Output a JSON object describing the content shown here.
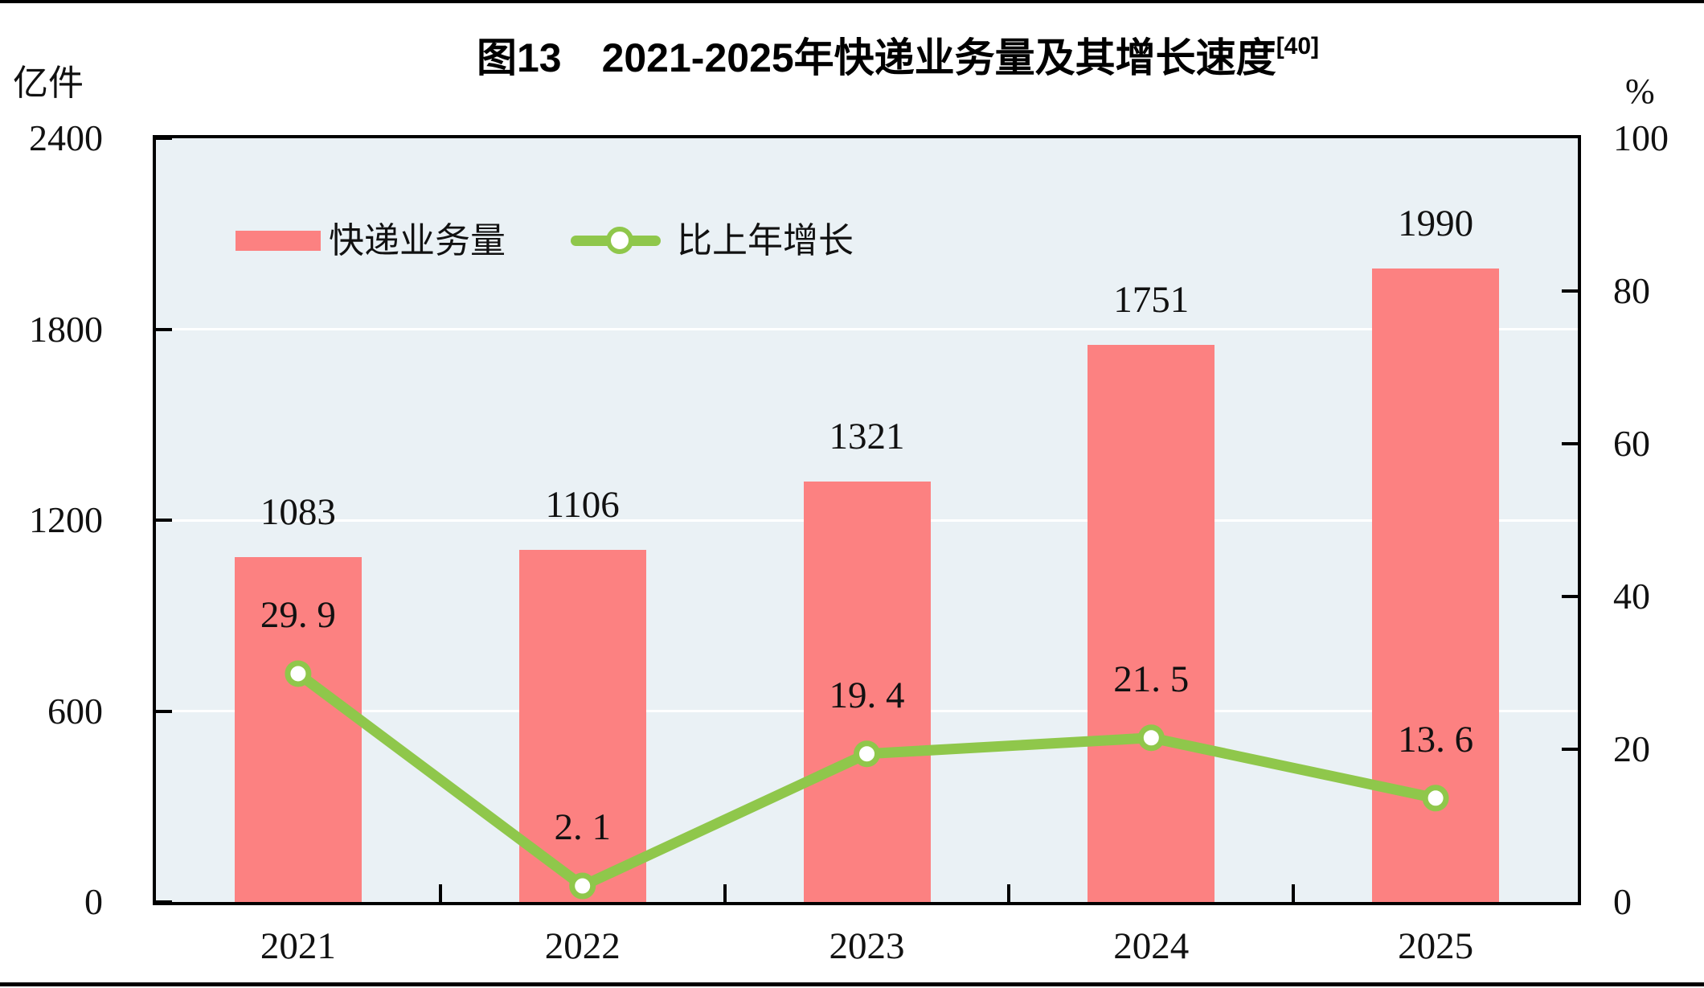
{
  "title": {
    "text": "图13　2021-2025年快递业务量及其增长速度",
    "superscript": "[40]"
  },
  "left_axis": {
    "unit": "亿件",
    "tick_labels": [
      "0",
      "600",
      "1200",
      "1800",
      "2400"
    ],
    "tick_values": [
      0,
      600,
      1200,
      1800,
      2400
    ],
    "min": 0,
    "max": 2400
  },
  "right_axis": {
    "unit": "%",
    "tick_labels": [
      "0",
      "20",
      "40",
      "60",
      "80",
      "100"
    ],
    "tick_values": [
      0,
      20,
      40,
      60,
      80,
      100
    ],
    "min": 0,
    "max": 100
  },
  "legend": {
    "bar_label": "快递业务量",
    "line_label": "比上年增长"
  },
  "colors": {
    "bar": "#FC8181",
    "line": "#8FC74B",
    "marker_fill": "#FFFFFF",
    "plot_background": "#EAF1F5",
    "gridline": "#FFFFFF",
    "axis": "#000000"
  },
  "chart_data": {
    "type": "bar",
    "subtype": "bar+line combo, dual axis",
    "categories": [
      "2021",
      "2022",
      "2023",
      "2024",
      "2025"
    ],
    "series": [
      {
        "name": "快递业务量",
        "type": "bar",
        "axis": "left",
        "values": [
          1083,
          1106,
          1321,
          1751,
          1990
        ],
        "value_labels": [
          "1083",
          "1106",
          "1321",
          "1751",
          "1990"
        ]
      },
      {
        "name": "比上年增长",
        "type": "line",
        "axis": "right",
        "values": [
          29.9,
          2.1,
          19.4,
          21.5,
          13.6
        ],
        "value_labels": [
          "29. 9",
          "2. 1",
          "19. 4",
          "21. 5",
          "13. 6"
        ]
      }
    ],
    "title": "图13　2021-2025年快递业务量及其增长速度[40]",
    "xlabel": "",
    "ylabel_left": "亿件",
    "ylabel_right": "%",
    "ylim_left": [
      0,
      2400
    ],
    "ylim_right": [
      0,
      100
    ],
    "gridlines_at_left_values": [
      600,
      1200,
      1800
    ],
    "grid": "horizontal white lines on light blue plot background",
    "legend_position": "inside top-left of plot area"
  }
}
